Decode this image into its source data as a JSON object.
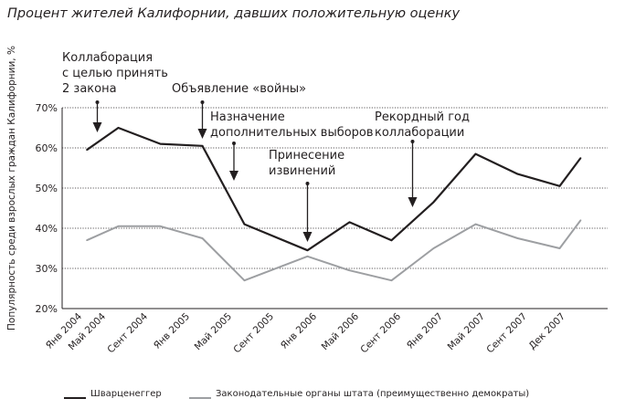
{
  "chart_data": {
    "type": "line",
    "title": "Процент жителей Калифорнии, давших положительную оценку",
    "ylabel": "Популярность среди взрослых граждан Калифорнии, %",
    "xlabel": "",
    "ylim": [
      20,
      70
    ],
    "yticks": [
      "20%",
      "30%",
      "40%",
      "50%",
      "60%",
      "70%"
    ],
    "grid": true,
    "legend_position": "bottom",
    "x_tick_labels": [
      "Янв 2004",
      "Май 2004",
      "Сент 2004",
      "Янв 2005",
      "Май 2005",
      "Сент 2005",
      "Янв 2006",
      "Май 2006",
      "Сент 2006",
      "Янв 2007",
      "Май 2007",
      "Сент 2007",
      "Дек 2007"
    ],
    "series": [
      {
        "name": "Шварценеггер",
        "color": "#231f20",
        "points": [
          {
            "x": "Янв 2004",
            "y": 59.5
          },
          {
            "x": "Апр 2004",
            "y": 65
          },
          {
            "x": "Авг 2004",
            "y": 61
          },
          {
            "x": "Дек 2004",
            "y": 60.5
          },
          {
            "x": "Апр 2005",
            "y": 41
          },
          {
            "x": "Окт 2005",
            "y": 34.5
          },
          {
            "x": "Фев 2006",
            "y": 41.5
          },
          {
            "x": "Июн 2006",
            "y": 37
          },
          {
            "x": "Окт 2006",
            "y": 46.5
          },
          {
            "x": "Фев 2007",
            "y": 58.5
          },
          {
            "x": "Июн 2007",
            "y": 53.5
          },
          {
            "x": "Окт 2007",
            "y": 50.5
          },
          {
            "x": "Дек 2007",
            "y": 57.5
          }
        ]
      },
      {
        "name": "Законодательные органы штата (преимущественно демократы)",
        "color": "#9d9fa2",
        "points": [
          {
            "x": "Янв 2004",
            "y": 37
          },
          {
            "x": "Апр 2004",
            "y": 40.5
          },
          {
            "x": "Авг 2004",
            "y": 40.5
          },
          {
            "x": "Дек 2004",
            "y": 37.5
          },
          {
            "x": "Апр 2005",
            "y": 27
          },
          {
            "x": "Окт 2005",
            "y": 33
          },
          {
            "x": "Фев 2006",
            "y": 29.5
          },
          {
            "x": "Июн 2006",
            "y": 27
          },
          {
            "x": "Окт 2006",
            "y": 35
          },
          {
            "x": "Фев 2007",
            "y": 41
          },
          {
            "x": "Июн 2007",
            "y": 37.5
          },
          {
            "x": "Окт 2007",
            "y": 35
          },
          {
            "x": "Дек 2007",
            "y": 42
          }
        ]
      }
    ],
    "annotations": [
      {
        "text": "Коллаборация\nс целью принять\n2 закона",
        "x": "Фев 2004"
      },
      {
        "text": "Объявление «войны»",
        "x": "Дек 2004"
      },
      {
        "text": "Назначение\nдополнительных выборов",
        "x": "Мар 2005"
      },
      {
        "text": "Принесение\nизвинений",
        "x": "Окт 2005"
      },
      {
        "text": "Рекордный год\nколлаборации",
        "x": "Авг 2006"
      }
    ]
  }
}
